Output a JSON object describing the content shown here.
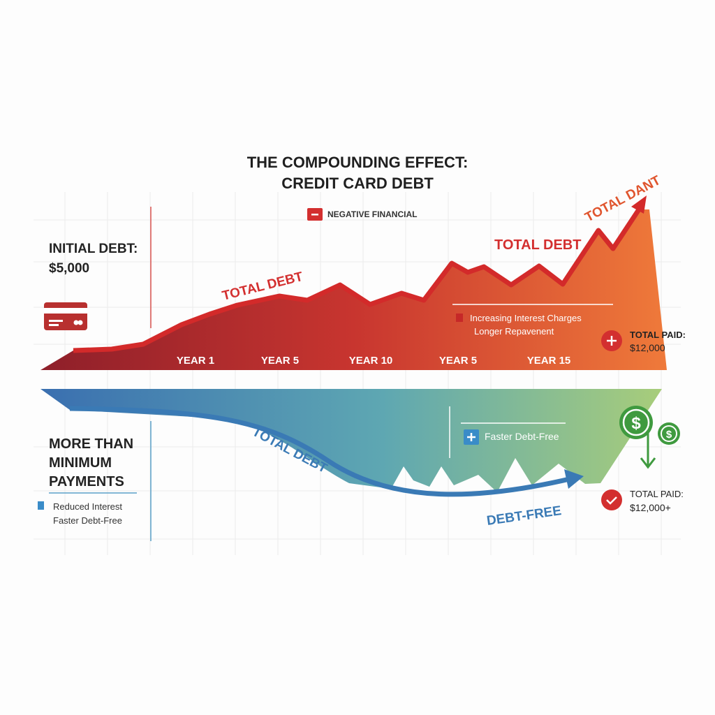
{
  "colors": {
    "debt_dark": "#8e1f2a",
    "debt_red": "#d32f2f",
    "debt_orange": "#ef7a3a",
    "pay_blue": "#3a78b3",
    "pay_teal": "#5fa8b0",
    "pay_green": "#a3c97a",
    "money_green": "#3f9a3f",
    "text": "#1f1f1f"
  },
  "chart_data": {
    "type": "area",
    "title": "THE COMPOUNDING EFFECT:",
    "subtitle": "CREDIT CARD DEBT",
    "x_tick_labels": [
      "YEAR 1",
      "YEAR 5",
      "YEAR 10",
      "YEAR 5",
      "YEAR 15"
    ],
    "grid": true,
    "legend": {
      "label": "NEGATIVE FINANCIAL",
      "icon": "minus-icon"
    },
    "series": [
      {
        "name": "TOTAL DEBT",
        "color": "#d32f2f",
        "trend": "increasing"
      },
      {
        "name": "TOTAL DEBT",
        "color": "#3a78b3",
        "trend": "decreasing"
      }
    ],
    "annotations": {
      "top": {
        "initial_debt_label": "INITIAL DEBT:",
        "initial_debt_value": "$5,000",
        "line_label_1": "TOTAL DEBT",
        "line_label_2": "TOTAL DEBT",
        "line_label_3": "TOTAL DANT",
        "note_1": "Increasing Interest Charges",
        "note_2": "Longer Repavenent",
        "total_paid_label": "TOTAL PAID:",
        "total_paid_value": "$12,000"
      },
      "bottom": {
        "heading_1": "MORE THAN",
        "heading_2": "MINIMUM",
        "heading_3": "PAYMENTS",
        "legend_1": "Reduced Interest",
        "legend_2": "Faster Debt-Free",
        "line_label": "TOTAL DEBT",
        "end_label": "DEBT-FREE",
        "note": "Faster Debt-Free",
        "total_paid_label": "TOTAL PAID:",
        "total_paid_value": "$12,000+"
      }
    }
  }
}
